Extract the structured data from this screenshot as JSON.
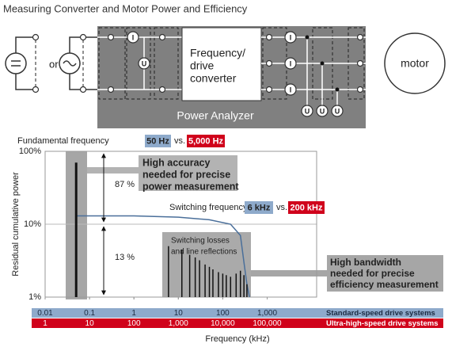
{
  "title": "Measuring Converter and Motor Power and Efficiency",
  "diagram": {
    "source_or": "or",
    "converter": [
      "Frequency/",
      "drive",
      "converter"
    ],
    "analyzer": "Power Analyzer",
    "motor": "motor",
    "current_symbol": "I",
    "voltage_symbol": "U"
  },
  "chart_data": {
    "type": "line",
    "x_label": "Frequency (kHz)",
    "y_label": "Residual cumulative power",
    "log_x": true,
    "log_y": true,
    "grid": true,
    "xlim": [
      0.01,
      13000
    ],
    "xticks": [
      0.01,
      0.1,
      1,
      10,
      100,
      {
        "value": 1000,
        "label": "1,000"
      }
    ],
    "xtick_row_name": "Standard-speed drive systems",
    "xtick_row_color": "#8eaacb",
    "x2lim": [
      1,
      1300000
    ],
    "x2ticks": [
      1,
      10,
      100,
      {
        "value": 1000,
        "label": "1,000"
      },
      {
        "value": 10000,
        "label": "10,000"
      },
      {
        "value": 100000,
        "label": "100,000"
      }
    ],
    "x2tick_row_name": "Ultra-high-speed drive systems",
    "x2tick_row_color": "#d0021b",
    "ylim": [
      1,
      100
    ],
    "yticks": [
      {
        "value": 1,
        "label": "1%"
      },
      {
        "value": 10,
        "label": "10%"
      },
      {
        "value": 100,
        "label": "100%"
      }
    ],
    "series": [
      {
        "type": "line",
        "color": "#4a6f9a",
        "x": [
          0.05,
          1,
          10,
          50,
          150,
          250,
          300,
          350,
          400
        ],
        "values": [
          13,
          13,
          12.5,
          11.5,
          10,
          7,
          3,
          1.5,
          1
        ]
      },
      {
        "type": "bar",
        "color": "#111111",
        "x": [
          0.05,
          6,
          12,
          18,
          24,
          30,
          40,
          50,
          60,
          80,
          100,
          120,
          150,
          200,
          250,
          300,
          350
        ],
        "values": [
          70,
          5,
          4.5,
          3.8,
          3.5,
          3.2,
          2.8,
          2.6,
          2.4,
          2.2,
          2.1,
          2,
          1.9,
          2.1,
          2.3,
          2,
          1.5
        ]
      }
    ],
    "annotations": {
      "fundamental": {
        "label": "Fundamental frequency",
        "low": "50 Hz",
        "vs": "vs.",
        "high": "5,000 Hz"
      },
      "switching": {
        "label": "Switching frequency",
        "low": "6 kHz",
        "vs": "vs.",
        "high": "200 kHz"
      },
      "accuracy": [
        "High accuracy",
        "needed for precise",
        "power measurement"
      ],
      "bandwidth": [
        "High bandwidth",
        "needed for precise",
        "efficiency measurement"
      ],
      "losses": [
        "Switching losses",
        "and line reflections"
      ],
      "upper_share": "87 %",
      "lower_share": "13 %"
    }
  }
}
